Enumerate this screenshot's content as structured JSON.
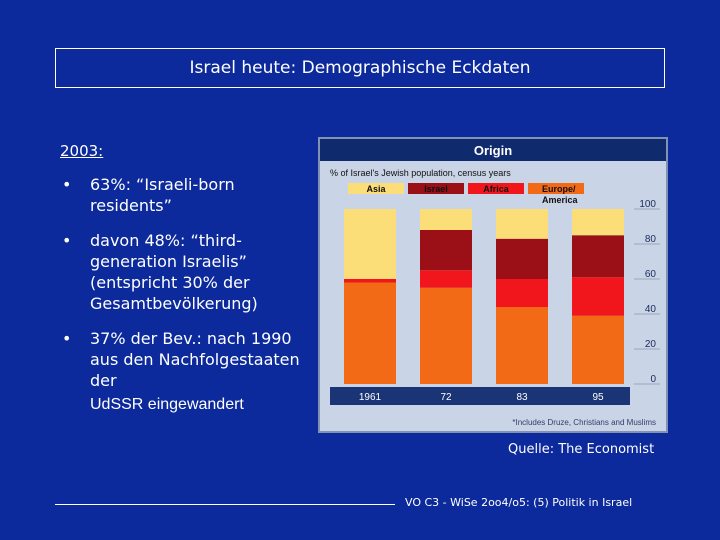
{
  "slide": {
    "title": "Israel heute: Demographische Eckdaten",
    "year_label": "2003:",
    "bullets": [
      "63%: “Israeli-born residents”",
      "davon 48%: “third-generation Israelis” (entspricht 30% der Gesamtbevölkerung)",
      "37% der Bev.: nach 1990 aus den Nachfolgestaaten der"
    ],
    "bullet_continuation": "UdSSR eingewandert",
    "source": "Quelle: The Economist",
    "footer": "VO C3 - WiSe 2oo4/o5: (5) Politik in Israel"
  },
  "chart_data": {
    "type": "bar",
    "stacked": true,
    "title": "Origin",
    "subtitle": "% of Israel's Jewish population, census years",
    "categories": [
      "1961",
      "72",
      "83",
      "95"
    ],
    "series": [
      {
        "name": "Europe/America",
        "values": [
          58,
          55,
          44,
          39
        ],
        "color": "#f26a16"
      },
      {
        "name": "Africa",
        "values": [
          2,
          10,
          16,
          22
        ],
        "color": "#f0161b"
      },
      {
        "name": "Israel",
        "values": [
          0,
          23,
          23,
          24
        ],
        "color": "#9a1016"
      },
      {
        "name": "Asia",
        "values": [
          40,
          12,
          17,
          15
        ],
        "color": "#fbde78"
      }
    ],
    "legend_order": [
      "Asia",
      "Israel",
      "Africa",
      "Europe/America"
    ],
    "legend_labels": {
      "Asia": "Asia",
      "Israel": "Israel",
      "Africa": "Africa",
      "Europe/America": "Europe/ America"
    },
    "ylim": [
      0,
      100
    ],
    "yticks": [
      0,
      20,
      40,
      60,
      80,
      100
    ],
    "footnote": "*Includes Druze, Christians and Muslims",
    "colors": {
      "header": "#102a6e",
      "frame": "#8193b4",
      "bg": "#c9d4e6",
      "axis_strip": "#1a3576"
    }
  }
}
